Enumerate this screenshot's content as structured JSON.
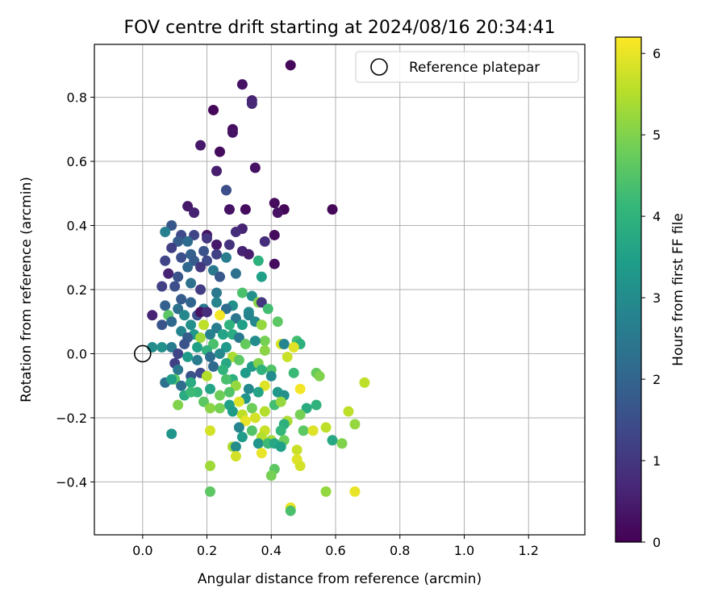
{
  "chart_data": {
    "type": "scatter",
    "title": "FOV centre drift starting at 2024/08/16 20:34:41",
    "xlabel": "Angular distance from reference (arcmin)",
    "ylabel": "Rotation from reference (arcmin)",
    "xlim": [
      -0.15,
      1.375
    ],
    "ylim": [
      -0.565,
      0.965
    ],
    "xticks": [
      0.0,
      0.2,
      0.4,
      0.6,
      0.8,
      1.0,
      1.2
    ],
    "xtick_labels": [
      "0.0",
      "0.2",
      "0.4",
      "0.6",
      "0.8",
      "1.0",
      "1.2"
    ],
    "yticks": [
      -0.4,
      -0.2,
      0.0,
      0.2,
      0.4,
      0.6,
      0.8
    ],
    "ytick_labels": [
      "−0.4",
      "−0.2",
      "0.0",
      "0.2",
      "0.4",
      "0.6",
      "0.8"
    ],
    "grid": true,
    "legend": {
      "placement": "top-right",
      "entries": [
        "Reference platepar"
      ]
    },
    "reference_point": {
      "x": 0.0,
      "y": 0.0
    },
    "colorbar": {
      "label": "Hours from first FF file",
      "colormap": "viridis",
      "range": [
        0,
        6.2
      ],
      "ticks": [
        0,
        1,
        2,
        3,
        4,
        5,
        6
      ],
      "tick_labels": [
        "0",
        "1",
        "2",
        "3",
        "4",
        "5",
        "6"
      ]
    },
    "colormap_stops": [
      "#440154",
      "#482878",
      "#3e4989",
      "#31688e",
      "#26828e",
      "#1f9e89",
      "#35b779",
      "#6ece58",
      "#b5de2b",
      "#fde725"
    ],
    "points": [
      {
        "x": 0.46,
        "y": 0.9,
        "c": 0.1
      },
      {
        "x": 0.31,
        "y": 0.84,
        "c": 0.3
      },
      {
        "x": 0.34,
        "y": 0.79,
        "c": 0.6
      },
      {
        "x": 0.34,
        "y": 0.78,
        "c": 0.7
      },
      {
        "x": 0.22,
        "y": 0.76,
        "c": 0.1
      },
      {
        "x": 0.28,
        "y": 0.7,
        "c": 0.2
      },
      {
        "x": 0.28,
        "y": 0.69,
        "c": 0.3
      },
      {
        "x": 0.18,
        "y": 0.65,
        "c": 0.4
      },
      {
        "x": 0.24,
        "y": 0.63,
        "c": 0.2
      },
      {
        "x": 0.35,
        "y": 0.58,
        "c": 0.3
      },
      {
        "x": 0.23,
        "y": 0.57,
        "c": 0.5
      },
      {
        "x": 0.26,
        "y": 0.51,
        "c": 1.3
      },
      {
        "x": 0.26,
        "y": 0.51,
        "c": 1.5
      },
      {
        "x": 0.41,
        "y": 0.47,
        "c": 0.2
      },
      {
        "x": 0.14,
        "y": 0.46,
        "c": 0.4
      },
      {
        "x": 0.16,
        "y": 0.44,
        "c": 0.6
      },
      {
        "x": 0.27,
        "y": 0.45,
        "c": 0.3
      },
      {
        "x": 0.32,
        "y": 0.45,
        "c": 0.2
      },
      {
        "x": 0.44,
        "y": 0.45,
        "c": 0.1
      },
      {
        "x": 0.42,
        "y": 0.44,
        "c": 0.3
      },
      {
        "x": 0.59,
        "y": 0.45,
        "c": 0.1
      },
      {
        "x": 0.09,
        "y": 0.4,
        "c": 1.7
      },
      {
        "x": 0.07,
        "y": 0.38,
        "c": 2.7
      },
      {
        "x": 0.12,
        "y": 0.37,
        "c": 1.4
      },
      {
        "x": 0.2,
        "y": 0.37,
        "c": 0.3
      },
      {
        "x": 0.16,
        "y": 0.37,
        "c": 1.3
      },
      {
        "x": 0.2,
        "y": 0.36,
        "c": 1.0
      },
      {
        "x": 0.31,
        "y": 0.39,
        "c": 0.6
      },
      {
        "x": 0.29,
        "y": 0.38,
        "c": 0.8
      },
      {
        "x": 0.41,
        "y": 0.37,
        "c": 0.2
      },
      {
        "x": 0.11,
        "y": 0.35,
        "c": 1.8
      },
      {
        "x": 0.14,
        "y": 0.35,
        "c": 2.2
      },
      {
        "x": 0.23,
        "y": 0.34,
        "c": 0.4
      },
      {
        "x": 0.27,
        "y": 0.34,
        "c": 0.9
      },
      {
        "x": 0.38,
        "y": 0.35,
        "c": 0.8
      },
      {
        "x": 0.09,
        "y": 0.33,
        "c": 1.2
      },
      {
        "x": 0.19,
        "y": 0.32,
        "c": 1.6
      },
      {
        "x": 0.15,
        "y": 0.31,
        "c": 1.9
      },
      {
        "x": 0.31,
        "y": 0.32,
        "c": 0.6
      },
      {
        "x": 0.33,
        "y": 0.31,
        "c": 0.5
      },
      {
        "x": 0.23,
        "y": 0.31,
        "c": 1.2
      },
      {
        "x": 0.26,
        "y": 0.3,
        "c": 2.6
      },
      {
        "x": 0.07,
        "y": 0.29,
        "c": 1.3
      },
      {
        "x": 0.12,
        "y": 0.3,
        "c": 1.5
      },
      {
        "x": 0.16,
        "y": 0.29,
        "c": 1.8
      },
      {
        "x": 0.2,
        "y": 0.29,
        "c": 1.4
      },
      {
        "x": 0.36,
        "y": 0.29,
        "c": 3.9
      },
      {
        "x": 0.41,
        "y": 0.28,
        "c": 0.2
      },
      {
        "x": 0.14,
        "y": 0.27,
        "c": 2.1
      },
      {
        "x": 0.18,
        "y": 0.27,
        "c": 1.0
      },
      {
        "x": 0.22,
        "y": 0.26,
        "c": 2.5
      },
      {
        "x": 0.29,
        "y": 0.25,
        "c": 2.3
      },
      {
        "x": 0.08,
        "y": 0.25,
        "c": 0.6
      },
      {
        "x": 0.11,
        "y": 0.24,
        "c": 1.6
      },
      {
        "x": 0.24,
        "y": 0.24,
        "c": 1.7
      },
      {
        "x": 0.37,
        "y": 0.24,
        "c": 3.5
      },
      {
        "x": 0.15,
        "y": 0.22,
        "c": 2.3
      },
      {
        "x": 0.06,
        "y": 0.21,
        "c": 1.2
      },
      {
        "x": 0.1,
        "y": 0.21,
        "c": 1.5
      },
      {
        "x": 0.18,
        "y": 0.2,
        "c": 1.1
      },
      {
        "x": 0.31,
        "y": 0.19,
        "c": 4.4
      },
      {
        "x": 0.23,
        "y": 0.19,
        "c": 2.5
      },
      {
        "x": 0.34,
        "y": 0.18,
        "c": 3.1
      },
      {
        "x": 0.36,
        "y": 0.16,
        "c": 5.1
      },
      {
        "x": 0.37,
        "y": 0.16,
        "c": 1.0
      },
      {
        "x": 0.12,
        "y": 0.17,
        "c": 1.8
      },
      {
        "x": 0.15,
        "y": 0.16,
        "c": 2.0
      },
      {
        "x": 0.07,
        "y": 0.15,
        "c": 1.9
      },
      {
        "x": 0.11,
        "y": 0.14,
        "c": 2.3
      },
      {
        "x": 0.19,
        "y": 0.14,
        "c": 2.6
      },
      {
        "x": 0.23,
        "y": 0.16,
        "c": 2.8
      },
      {
        "x": 0.28,
        "y": 0.15,
        "c": 3.1
      },
      {
        "x": 0.26,
        "y": 0.14,
        "c": 2.2
      },
      {
        "x": 0.33,
        "y": 0.13,
        "c": 3.0
      },
      {
        "x": 0.39,
        "y": 0.14,
        "c": 4.3
      },
      {
        "x": 0.03,
        "y": 0.12,
        "c": 0.6
      },
      {
        "x": 0.08,
        "y": 0.12,
        "c": 4.6
      },
      {
        "x": 0.13,
        "y": 0.12,
        "c": 2.9
      },
      {
        "x": 0.17,
        "y": 0.12,
        "c": 1.5
      },
      {
        "x": 0.18,
        "y": 0.13,
        "c": 0.3
      },
      {
        "x": 0.2,
        "y": 0.13,
        "c": 0.8
      },
      {
        "x": 0.24,
        "y": 0.12,
        "c": 6.1
      },
      {
        "x": 0.29,
        "y": 0.11,
        "c": 2.4
      },
      {
        "x": 0.33,
        "y": 0.12,
        "c": 2.8
      },
      {
        "x": 0.06,
        "y": 0.09,
        "c": 1.6
      },
      {
        "x": 0.09,
        "y": 0.1,
        "c": 2.1
      },
      {
        "x": 0.15,
        "y": 0.09,
        "c": 3.1
      },
      {
        "x": 0.19,
        "y": 0.09,
        "c": 5.6
      },
      {
        "x": 0.23,
        "y": 0.08,
        "c": 2.6
      },
      {
        "x": 0.27,
        "y": 0.09,
        "c": 4.0
      },
      {
        "x": 0.31,
        "y": 0.09,
        "c": 3.5
      },
      {
        "x": 0.35,
        "y": 0.1,
        "c": 2.9
      },
      {
        "x": 0.37,
        "y": 0.09,
        "c": 5.2
      },
      {
        "x": 0.42,
        "y": 0.1,
        "c": 4.6
      },
      {
        "x": 0.12,
        "y": 0.07,
        "c": 2.8
      },
      {
        "x": 0.16,
        "y": 0.06,
        "c": 3.3
      },
      {
        "x": 0.21,
        "y": 0.06,
        "c": 2.7
      },
      {
        "x": 0.25,
        "y": 0.06,
        "c": 3.6
      },
      {
        "x": 0.28,
        "y": 0.06,
        "c": 3.8
      },
      {
        "x": 0.3,
        "y": 0.05,
        "c": 2.5
      },
      {
        "x": 0.14,
        "y": 0.05,
        "c": 1.8
      },
      {
        "x": 0.18,
        "y": 0.05,
        "c": 5.3
      },
      {
        "x": 0.38,
        "y": 0.04,
        "c": 4.9
      },
      {
        "x": 0.43,
        "y": 0.03,
        "c": 5.8
      },
      {
        "x": 0.48,
        "y": 0.04,
        "c": 4.3
      },
      {
        "x": 0.49,
        "y": 0.03,
        "c": 3.9
      },
      {
        "x": 0.09,
        "y": 0.02,
        "c": 2.6
      },
      {
        "x": 0.13,
        "y": 0.03,
        "c": 1.6
      },
      {
        "x": 0.17,
        "y": 0.02,
        "c": 3.5
      },
      {
        "x": 0.22,
        "y": 0.03,
        "c": 4.4
      },
      {
        "x": 0.26,
        "y": 0.02,
        "c": 3.3
      },
      {
        "x": 0.32,
        "y": 0.03,
        "c": 4.7
      },
      {
        "x": 0.35,
        "y": 0.04,
        "c": 3.0
      },
      {
        "x": 0.44,
        "y": 0.03,
        "c": 2.8
      },
      {
        "x": 0.47,
        "y": 0.02,
        "c": 5.9
      },
      {
        "x": 0.03,
        "y": 0.02,
        "c": 3.0
      },
      {
        "x": 0.06,
        "y": 0.02,
        "c": 3.1
      },
      {
        "x": 0.11,
        "y": 0.0,
        "c": 1.3
      },
      {
        "x": 0.2,
        "y": 0.01,
        "c": 4.0
      },
      {
        "x": 0.24,
        "y": 0.0,
        "c": 2.9
      },
      {
        "x": 0.28,
        "y": -0.01,
        "c": 5.4
      },
      {
        "x": 0.38,
        "y": 0.01,
        "c": 5.1
      },
      {
        "x": 0.45,
        "y": -0.01,
        "c": 5.7
      },
      {
        "x": 0.07,
        "y": -0.09,
        "c": 2.3
      },
      {
        "x": 0.1,
        "y": -0.03,
        "c": 1.2
      },
      {
        "x": 0.14,
        "y": -0.01,
        "c": 3.4
      },
      {
        "x": 0.17,
        "y": -0.02,
        "c": 2.6
      },
      {
        "x": 0.21,
        "y": -0.01,
        "c": 2.2
      },
      {
        "x": 0.26,
        "y": -0.03,
        "c": 3.7
      },
      {
        "x": 0.3,
        "y": -0.02,
        "c": 4.6
      },
      {
        "x": 0.34,
        "y": -0.04,
        "c": 3.4
      },
      {
        "x": 0.36,
        "y": -0.03,
        "c": 5.0
      },
      {
        "x": 0.4,
        "y": -0.05,
        "c": 4.5
      },
      {
        "x": 0.11,
        "y": -0.05,
        "c": 2.5
      },
      {
        "x": 0.15,
        "y": -0.07,
        "c": 1.6
      },
      {
        "x": 0.18,
        "y": -0.06,
        "c": 1.4
      },
      {
        "x": 0.22,
        "y": -0.04,
        "c": 2.1
      },
      {
        "x": 0.25,
        "y": -0.05,
        "c": 4.0
      },
      {
        "x": 0.28,
        "y": -0.08,
        "c": 3.9
      },
      {
        "x": 0.32,
        "y": -0.06,
        "c": 3.4
      },
      {
        "x": 0.37,
        "y": -0.05,
        "c": 4.0
      },
      {
        "x": 0.4,
        "y": -0.07,
        "c": 3.0
      },
      {
        "x": 0.47,
        "y": -0.06,
        "c": 4.2
      },
      {
        "x": 0.54,
        "y": -0.06,
        "c": 4.7
      },
      {
        "x": 0.55,
        "y": -0.07,
        "c": 5.0
      },
      {
        "x": 0.1,
        "y": -0.08,
        "c": 4.6
      },
      {
        "x": 0.12,
        "y": -0.1,
        "c": 2.2
      },
      {
        "x": 0.09,
        "y": -0.08,
        "c": 3.5
      },
      {
        "x": 0.15,
        "y": -0.09,
        "c": 3.8
      },
      {
        "x": 0.2,
        "y": -0.07,
        "c": 5.5
      },
      {
        "x": 0.26,
        "y": -0.08,
        "c": 4.4
      },
      {
        "x": 0.29,
        "y": -0.1,
        "c": 5.2
      },
      {
        "x": 0.33,
        "y": -0.11,
        "c": 2.9
      },
      {
        "x": 0.38,
        "y": -0.1,
        "c": 5.9
      },
      {
        "x": 0.42,
        "y": -0.12,
        "c": 3.3
      },
      {
        "x": 0.49,
        "y": -0.11,
        "c": 6.1
      },
      {
        "x": 0.69,
        "y": -0.09,
        "c": 5.6
      },
      {
        "x": 0.13,
        "y": -0.13,
        "c": 3.8
      },
      {
        "x": 0.17,
        "y": -0.12,
        "c": 4.1
      },
      {
        "x": 0.21,
        "y": -0.11,
        "c": 3.6
      },
      {
        "x": 0.24,
        "y": -0.13,
        "c": 4.8
      },
      {
        "x": 0.27,
        "y": -0.12,
        "c": 4.5
      },
      {
        "x": 0.32,
        "y": -0.14,
        "c": 3.2
      },
      {
        "x": 0.36,
        "y": -0.12,
        "c": 3.6
      },
      {
        "x": 0.44,
        "y": -0.13,
        "c": 3.1
      },
      {
        "x": 0.11,
        "y": -0.16,
        "c": 5.0
      },
      {
        "x": 0.15,
        "y": -0.12,
        "c": 4.2
      },
      {
        "x": 0.19,
        "y": -0.15,
        "c": 4.6
      },
      {
        "x": 0.27,
        "y": -0.16,
        "c": 3.5
      },
      {
        "x": 0.3,
        "y": -0.15,
        "c": 5.9
      },
      {
        "x": 0.34,
        "y": -0.17,
        "c": 4.8
      },
      {
        "x": 0.38,
        "y": -0.18,
        "c": 5.5
      },
      {
        "x": 0.41,
        "y": -0.16,
        "c": 4.3
      },
      {
        "x": 0.43,
        "y": -0.15,
        "c": 5.2
      },
      {
        "x": 0.54,
        "y": -0.16,
        "c": 4.0
      },
      {
        "x": 0.51,
        "y": -0.17,
        "c": 3.8
      },
      {
        "x": 0.21,
        "y": -0.17,
        "c": 5.1
      },
      {
        "x": 0.24,
        "y": -0.17,
        "c": 4.9
      },
      {
        "x": 0.28,
        "y": -0.18,
        "c": 3.4
      },
      {
        "x": 0.31,
        "y": -0.19,
        "c": 5.6
      },
      {
        "x": 0.35,
        "y": -0.2,
        "c": 5.8
      },
      {
        "x": 0.32,
        "y": -0.21,
        "c": 6.0
      },
      {
        "x": 0.45,
        "y": -0.21,
        "c": 5.4
      },
      {
        "x": 0.49,
        "y": -0.19,
        "c": 4.9
      },
      {
        "x": 0.64,
        "y": -0.18,
        "c": 5.6
      },
      {
        "x": 0.66,
        "y": -0.22,
        "c": 5.2
      },
      {
        "x": 0.09,
        "y": -0.25,
        "c": 3.2
      },
      {
        "x": 0.3,
        "y": -0.23,
        "c": 2.8
      },
      {
        "x": 0.34,
        "y": -0.24,
        "c": 4.5
      },
      {
        "x": 0.38,
        "y": -0.24,
        "c": 5.7
      },
      {
        "x": 0.44,
        "y": -0.22,
        "c": 3.9
      },
      {
        "x": 0.43,
        "y": -0.24,
        "c": 4.1
      },
      {
        "x": 0.5,
        "y": -0.24,
        "c": 4.6
      },
      {
        "x": 0.53,
        "y": -0.24,
        "c": 5.9
      },
      {
        "x": 0.57,
        "y": -0.23,
        "c": 5.6
      },
      {
        "x": 0.21,
        "y": -0.24,
        "c": 5.8
      },
      {
        "x": 0.31,
        "y": -0.26,
        "c": 3.4
      },
      {
        "x": 0.37,
        "y": -0.26,
        "c": 5.5
      },
      {
        "x": 0.4,
        "y": -0.27,
        "c": 5.3
      },
      {
        "x": 0.44,
        "y": -0.27,
        "c": 4.8
      },
      {
        "x": 0.59,
        "y": -0.27,
        "c": 3.7
      },
      {
        "x": 0.62,
        "y": -0.28,
        "c": 5.0
      },
      {
        "x": 0.28,
        "y": -0.29,
        "c": 5.4
      },
      {
        "x": 0.29,
        "y": -0.29,
        "c": 3.0
      },
      {
        "x": 0.36,
        "y": -0.28,
        "c": 3.2
      },
      {
        "x": 0.39,
        "y": -0.28,
        "c": 4.2
      },
      {
        "x": 0.41,
        "y": -0.28,
        "c": 3.7
      },
      {
        "x": 0.43,
        "y": -0.29,
        "c": 3.5
      },
      {
        "x": 0.37,
        "y": -0.31,
        "c": 6.0
      },
      {
        "x": 0.48,
        "y": -0.3,
        "c": 5.7
      },
      {
        "x": 0.29,
        "y": -0.32,
        "c": 5.8
      },
      {
        "x": 0.48,
        "y": -0.33,
        "c": 5.9
      },
      {
        "x": 0.49,
        "y": -0.35,
        "c": 5.8
      },
      {
        "x": 0.21,
        "y": -0.35,
        "c": 5.3
      },
      {
        "x": 0.41,
        "y": -0.36,
        "c": 4.6
      },
      {
        "x": 0.4,
        "y": -0.38,
        "c": 4.9
      },
      {
        "x": 0.21,
        "y": -0.43,
        "c": 4.6
      },
      {
        "x": 0.57,
        "y": -0.43,
        "c": 5.2
      },
      {
        "x": 0.66,
        "y": -0.43,
        "c": 6.0
      },
      {
        "x": 0.46,
        "y": -0.48,
        "c": 6.0
      },
      {
        "x": 0.46,
        "y": -0.49,
        "c": 4.4
      }
    ]
  }
}
